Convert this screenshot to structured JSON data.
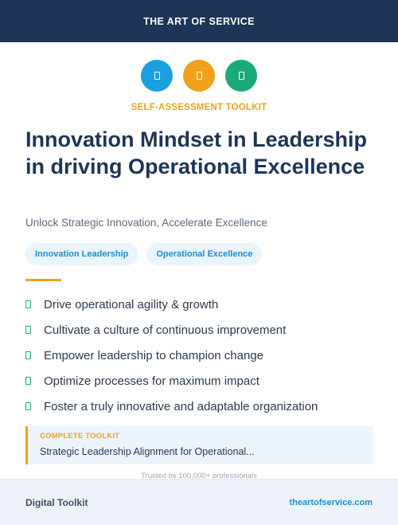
{
  "header": {
    "brand": "THE ART OF SERVICE"
  },
  "icons": [
    {
      "name": "document-icon",
      "color": "#1a9fe0"
    },
    {
      "name": "document-icon",
      "color": "#f0a01c"
    },
    {
      "name": "document-icon",
      "color": "#1aaa77"
    }
  ],
  "eyebrow": "SELF-ASSESSMENT TOOLKIT",
  "title": "Innovation Mindset in Leadership in driving Operational Excellence",
  "subtitle": "Unlock Strategic Innovation, Accelerate Excellence",
  "tags": [
    "Innovation Leadership",
    "Operational Excellence"
  ],
  "benefits": [
    "Drive operational agility & growth",
    "Cultivate a culture of continuous improvement",
    "Empower leadership to champion change",
    "Optimize processes for maximum impact",
    "Foster a truly innovative and adaptable organization"
  ],
  "card": {
    "label": "COMPLETE TOOLKIT",
    "title": "Strategic Leadership Alignment for Operational..."
  },
  "trust": "Trusted by 100,000+ professionals",
  "footer": {
    "left": "Digital Toolkit",
    "right": "theartofservice.com"
  },
  "colors": {
    "navy": "#1d3557",
    "accent_orange": "#f0a01c",
    "accent_blue": "#1a9fe0",
    "accent_green": "#1aaa77"
  }
}
